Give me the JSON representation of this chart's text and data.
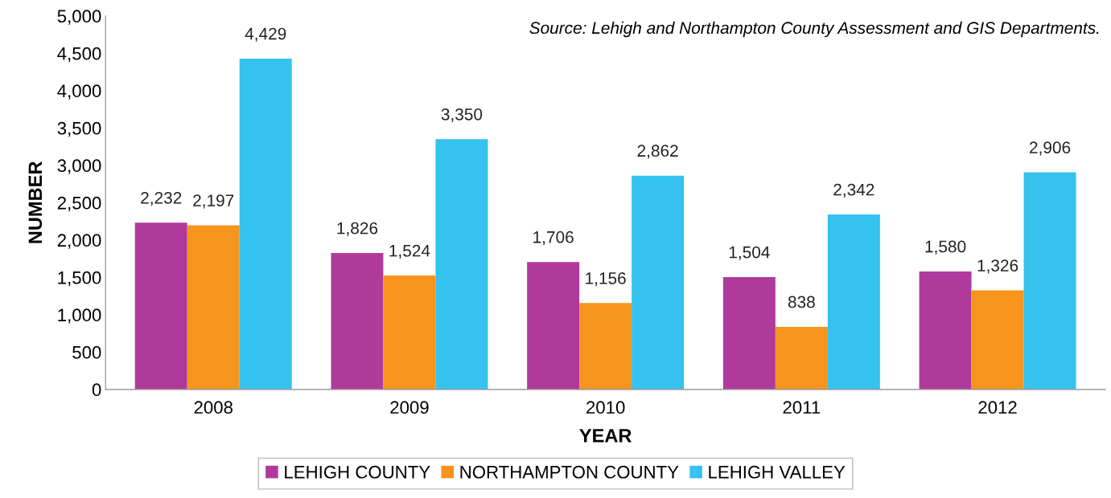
{
  "chart_data": {
    "type": "bar",
    "xlabel": "YEAR",
    "ylabel": "NUMBER",
    "categories": [
      "2008",
      "2009",
      "2010",
      "2011",
      "2012"
    ],
    "series": [
      {
        "name": "LEHIGH COUNTY",
        "color": "#b03a9c",
        "values": [
          2232,
          1826,
          1706,
          1504,
          1580
        ],
        "value_labels": [
          "2,232",
          "1,826",
          "1,706",
          "1,504",
          "1,580"
        ]
      },
      {
        "name": "NORTHAMPTON COUNTY",
        "color": "#f7941d",
        "values": [
          2197,
          1524,
          1156,
          838,
          1326
        ],
        "value_labels": [
          "2,197",
          "1,524",
          "1,156",
          "838",
          "1,326"
        ]
      },
      {
        "name": "LEHIGH VALLEY",
        "color": "#35c2ee",
        "values": [
          4429,
          3350,
          2862,
          2342,
          2906
        ],
        "value_labels": [
          "4,429",
          "3,350",
          "2,862",
          "2,342",
          "2,906"
        ]
      }
    ],
    "ylim": [
      0,
      5000
    ],
    "yticks": [
      {
        "value": 0,
        "label": "0"
      },
      {
        "value": 500,
        "label": "500"
      },
      {
        "value": 1000,
        "label": "1,000"
      },
      {
        "value": 1500,
        "label": "1,500"
      },
      {
        "value": 2000,
        "label": "2,000"
      },
      {
        "value": 2500,
        "label": "2,500"
      },
      {
        "value": 3000,
        "label": "3,000"
      },
      {
        "value": 3500,
        "label": "3,500"
      },
      {
        "value": 4000,
        "label": "4,000"
      },
      {
        "value": 4500,
        "label": "4,500"
      },
      {
        "value": 5000,
        "label": "5,000"
      }
    ],
    "legend": "bottom",
    "grid": false,
    "annotations": [
      "Source: Lehigh and Northampton County Assessment and GIS Departments."
    ]
  }
}
